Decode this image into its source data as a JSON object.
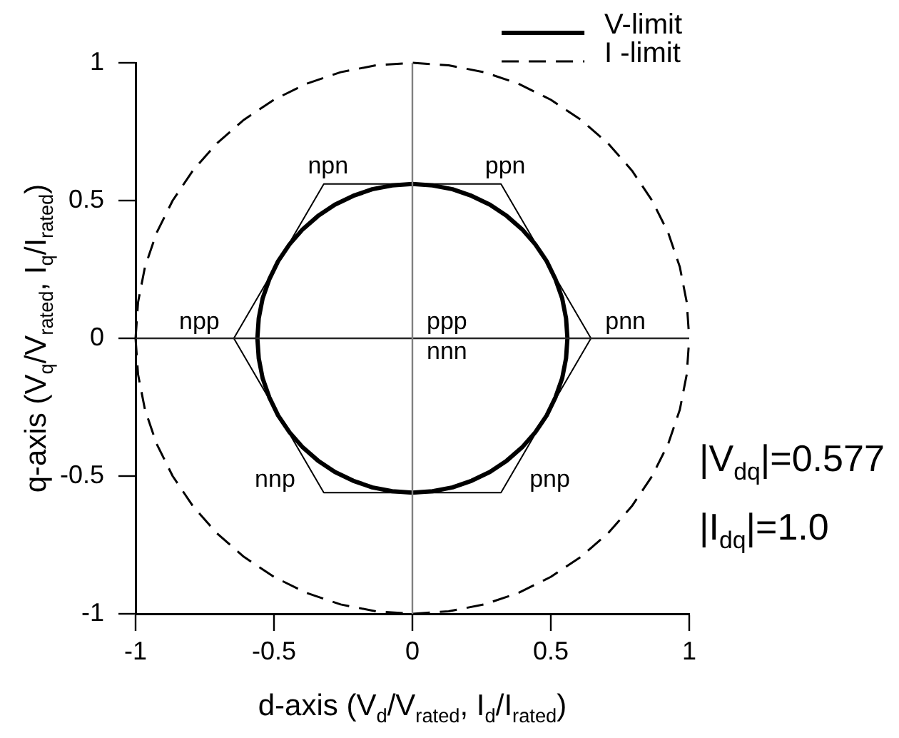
{
  "chart_data": {
    "type": "line",
    "xlabel": "d-axis (V$_{d}$/V$_{rated}$, I$_{d}$/I$_{rated}$)",
    "ylabel": "q-axis (V$_{q}$/V$_{rated}$, I$_{q}$/I$_{rated}$)",
    "xlim": [
      -1,
      1
    ],
    "ylim": [
      -1,
      1
    ],
    "xticks": [
      -1,
      -0.5,
      0,
      0.5,
      1
    ],
    "yticks": [
      -1,
      -0.5,
      0,
      0.5,
      1
    ],
    "legend": "top right",
    "series": [
      {
        "name": "V-limit",
        "color": "#000000",
        "line_style": "solid",
        "x": [
          -0.56,
          -0.555,
          -0.541,
          -0.517,
          -0.485,
          -0.444,
          -0.396,
          -0.341,
          -0.28,
          -0.214,
          -0.145,
          -0.073,
          0,
          0.073,
          0.145,
          0.214,
          0.28,
          0.341,
          0.396,
          0.444,
          0.485,
          0.517,
          0.541,
          0.555,
          0.56,
          null,
          -0.56,
          -0.555,
          -0.541,
          -0.517,
          -0.485,
          -0.444,
          -0.396,
          -0.341,
          -0.28,
          -0.214,
          -0.145,
          -0.073,
          0,
          0.073,
          0.145,
          0.214,
          0.28,
          0.341,
          0.396,
          0.444,
          0.485,
          0.517,
          0.541,
          0.555,
          0.56
        ],
        "values": [
          0,
          0.073,
          0.145,
          0.214,
          0.28,
          0.341,
          0.396,
          0.444,
          0.485,
          0.517,
          0.541,
          0.555,
          0.56,
          0.555,
          0.541,
          0.517,
          0.485,
          0.444,
          0.396,
          0.341,
          0.28,
          0.214,
          0.145,
          0.073,
          0,
          null,
          0,
          -0.073,
          -0.145,
          -0.214,
          -0.28,
          -0.341,
          -0.396,
          -0.444,
          -0.485,
          -0.517,
          -0.541,
          -0.555,
          -0.56,
          -0.555,
          -0.541,
          -0.517,
          -0.485,
          -0.444,
          -0.396,
          -0.341,
          -0.28,
          -0.214,
          -0.145,
          -0.073,
          0
        ]
      },
      {
        "name": "I -limit",
        "color": "#000000",
        "line_style": "dashed",
        "x": [
          -1,
          -0.991,
          -0.966,
          -0.924,
          -0.866,
          -0.793,
          -0.707,
          -0.609,
          -0.5,
          -0.383,
          -0.259,
          -0.131,
          0,
          0.131,
          0.259,
          0.383,
          0.5,
          0.609,
          0.707,
          0.793,
          0.866,
          0.924,
          0.966,
          0.991,
          1,
          null,
          -1,
          -0.991,
          -0.966,
          -0.924,
          -0.866,
          -0.793,
          -0.707,
          -0.609,
          -0.5,
          -0.383,
          -0.259,
          -0.131,
          0,
          0.131,
          0.259,
          0.383,
          0.5,
          0.609,
          0.707,
          0.793,
          0.866,
          0.924,
          0.966,
          0.991,
          1
        ],
        "values": [
          0,
          0.131,
          0.259,
          0.383,
          0.5,
          0.609,
          0.707,
          0.793,
          0.866,
          0.924,
          0.966,
          0.991,
          1,
          0.991,
          0.966,
          0.924,
          0.866,
          0.793,
          0.707,
          0.609,
          0.5,
          0.383,
          0.259,
          0.131,
          0,
          null,
          0,
          -0.131,
          -0.259,
          -0.383,
          -0.5,
          -0.609,
          -0.707,
          -0.793,
          -0.866,
          -0.924,
          -0.966,
          -0.991,
          -1,
          -0.991,
          -0.966,
          -0.924,
          -0.866,
          -0.793,
          -0.707,
          -0.609,
          -0.5,
          -0.383,
          -0.259,
          -0.131,
          0
        ]
      },
      {
        "color": "#000000",
        "x": [
          -0.645,
          -0.32,
          0.32,
          0.645,
          null,
          -0.645,
          -0.32,
          0.32,
          0.645
        ],
        "values": [
          0,
          0.56,
          0.56,
          0,
          null,
          0,
          -0.56,
          -0.56,
          0
        ]
      }
    ],
    "ref_lines": [
      {
        "axis": "y",
        "value": 0,
        "color": "#262626"
      },
      {
        "axis": "x",
        "value": 0,
        "color": "#808080"
      }
    ],
    "annotations": [
      {
        "text": "npn",
        "x": -0.32,
        "y": 0.56
      },
      {
        "text": "ppn",
        "x": 0.32,
        "y": 0.56
      },
      {
        "text": "npp",
        "x": -0.645,
        "y": 0
      },
      {
        "text": "pnn",
        "x": 0.645,
        "y": 0
      },
      {
        "text": "ppp",
        "x": 0,
        "y": 0
      },
      {
        "text": "nnn",
        "x": 0,
        "y": 0
      },
      {
        "text": "nnp",
        "x": -0.32,
        "y": -0.56
      },
      {
        "text": "pnp",
        "x": 0.32,
        "y": -0.56
      },
      "|V$_{dq}$|=0.577",
      "|I$_{dq}$|=1.0"
    ]
  }
}
